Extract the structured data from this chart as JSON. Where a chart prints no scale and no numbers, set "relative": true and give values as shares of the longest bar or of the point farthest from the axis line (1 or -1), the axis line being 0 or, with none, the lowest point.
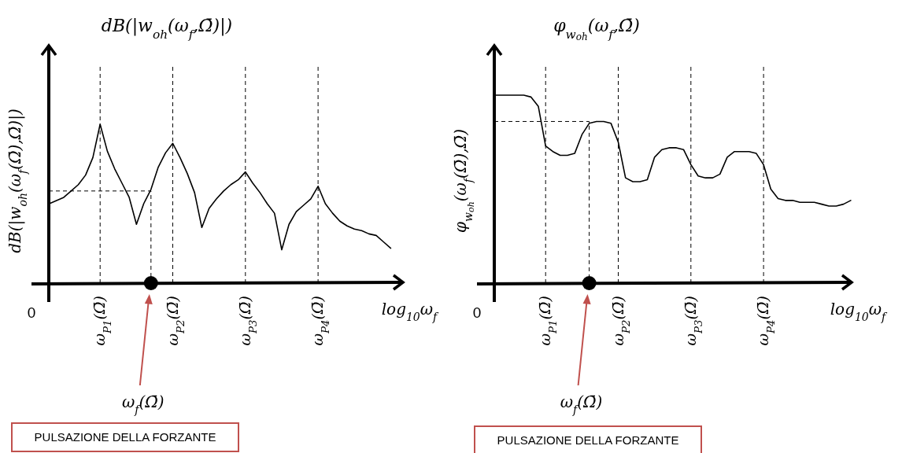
{
  "chart_data": [
    {
      "type": "line",
      "title": "dB(|w$_{oh}$(ω$_{f}$,Ω̄)|)",
      "ylabel": "dB(|w$_{oh}$(ω$_{f}$(Ω̄),Ω̄)|)",
      "xlabel": "log$_{10}$ω$_{f}$",
      "relative": true,
      "grid": false,
      "legend": false,
      "categories": [
        null,
        null,
        null,
        null,
        null,
        null,
        null,
        "ω$_{P1}$(Ω̄)",
        null,
        null,
        null,
        null,
        null,
        null,
        null,
        null,
        null,
        "ω$_{P2}$(Ω̄)",
        null,
        null,
        null,
        null,
        null,
        null,
        null,
        null,
        null,
        "ω$_{P3}$(Ω̄)",
        null,
        null,
        null,
        null,
        null,
        null,
        null,
        null,
        null,
        "ω$_{P4}$(Ω̄)",
        null,
        null,
        null,
        null,
        null,
        null,
        null,
        null,
        null,
        null
      ],
      "series": [
        {
          "type": "line",
          "color": "#000000",
          "values": [
            0.5,
            0.52,
            0.54,
            0.58,
            0.62,
            0.68,
            0.79,
            1,
            0.83,
            0.72,
            0.63,
            0.54,
            0.37,
            0.5,
            0.59,
            0.73,
            0.82,
            0.88,
            0.79,
            0.69,
            0.57,
            0.35,
            0.47,
            0.53,
            0.58,
            0.62,
            0.65,
            0.7,
            0.63,
            0.57,
            0.5,
            0.44,
            0.21,
            0.37,
            0.45,
            0.49,
            0.53,
            0.61,
            0.5,
            0.44,
            0.39,
            0.36,
            0.34,
            0.33,
            0.31,
            0.3,
            0.26,
            0.22
          ]
        },
        {
          "type": "scatter",
          "color": "#000000",
          "marker": "circle",
          "values": [
            null,
            null,
            null,
            null,
            null,
            null,
            null,
            null,
            null,
            null,
            null,
            null,
            null,
            null,
            0,
            null,
            null,
            null,
            null,
            null,
            null,
            null,
            null,
            null,
            null,
            null,
            null,
            null,
            null,
            null,
            null,
            null,
            null,
            null,
            null,
            null,
            null,
            null,
            null,
            null,
            null,
            null,
            null,
            null,
            null,
            null,
            null,
            null
          ]
        }
      ],
      "ref_lines": [
        {
          "axis": "x",
          "value": "ω$_{P1}$(Ω̄)",
          "line_style": "dashed"
        },
        {
          "axis": "x",
          "value": "ω$_{P2}$(Ω̄)",
          "line_style": "dashed"
        },
        {
          "axis": "x",
          "value": "ω$_{P3}$(Ω̄)",
          "line_style": "dashed"
        },
        {
          "axis": "x",
          "value": "ω$_{P4}$(Ω̄)",
          "line_style": "dashed"
        },
        {
          "axis": "y",
          "value": 0.58,
          "line_style": "dashed"
        }
      ],
      "annotations": [
        "0",
        "ω$_{f}$(Ω̄)",
        "PULSAZIONE DELLA FORZANTE"
      ]
    },
    {
      "type": "line",
      "title": "φ$_{w}$$_{oh}$(ω$_{f}$,Ω̄)",
      "ylabel": "φ$_{w}$$_{oh}$(ω$_{f}$(Ω̄),Ω̄)",
      "xlabel": "log$_{10}$ω$_{f}$",
      "relative": true,
      "grid": false,
      "legend": false,
      "categories": [
        null,
        null,
        null,
        null,
        null,
        null,
        null,
        "ω$_{P1}$(Ω̄)",
        null,
        null,
        null,
        null,
        null,
        null,
        null,
        null,
        null,
        "ω$_{P2}$(Ω̄)",
        null,
        null,
        null,
        null,
        null,
        null,
        null,
        null,
        null,
        "ω$_{P3}$(Ω̄)",
        null,
        null,
        null,
        null,
        null,
        null,
        null,
        null,
        null,
        "ω$_{P4}$(Ω̄)",
        null,
        null,
        null,
        null,
        null,
        null,
        null,
        null,
        null,
        null,
        null,
        null
      ],
      "series": [
        {
          "type": "line",
          "color": "#000000",
          "values": [
            1,
            1,
            1,
            1,
            1,
            0.99,
            0.94,
            0.73,
            0.7,
            0.68,
            0.68,
            0.69,
            0.79,
            0.85,
            0.86,
            0.86,
            0.85,
            0.75,
            0.56,
            0.54,
            0.54,
            0.55,
            0.67,
            0.71,
            0.72,
            0.72,
            0.71,
            0.63,
            0.57,
            0.56,
            0.56,
            0.58,
            0.67,
            0.7,
            0.7,
            0.7,
            0.69,
            0.63,
            0.5,
            0.45,
            0.44,
            0.44,
            0.43,
            0.43,
            0.43,
            0.42,
            0.41,
            0.41,
            0.42,
            0.44
          ]
        },
        {
          "type": "scatter",
          "color": "#000000",
          "marker": "circle",
          "values": [
            null,
            null,
            null,
            null,
            null,
            null,
            null,
            null,
            null,
            null,
            null,
            null,
            null,
            0,
            null,
            null,
            null,
            null,
            null,
            null,
            null,
            null,
            null,
            null,
            null,
            null,
            null,
            null,
            null,
            null,
            null,
            null,
            null,
            null,
            null,
            null,
            null,
            null,
            null,
            null,
            null,
            null,
            null,
            null,
            null,
            null,
            null,
            null,
            null,
            null
          ]
        }
      ],
      "ref_lines": [
        {
          "axis": "x",
          "value": "ω$_{P1}$(Ω̄)",
          "line_style": "dashed"
        },
        {
          "axis": "x",
          "value": "ω$_{P2}$(Ω̄)",
          "line_style": "dashed"
        },
        {
          "axis": "x",
          "value": "ω$_{P3}$(Ω̄)",
          "line_style": "dashed"
        },
        {
          "axis": "x",
          "value": "ω$_{P4}$(Ω̄)",
          "line_style": "dashed"
        },
        {
          "axis": "y",
          "value": 0.86,
          "line_style": "dashed"
        }
      ],
      "annotations": [
        "0",
        "ω$_{f}$(Ω̄)",
        "PULSAZIONE DELLA FORZANTE"
      ]
    }
  ]
}
